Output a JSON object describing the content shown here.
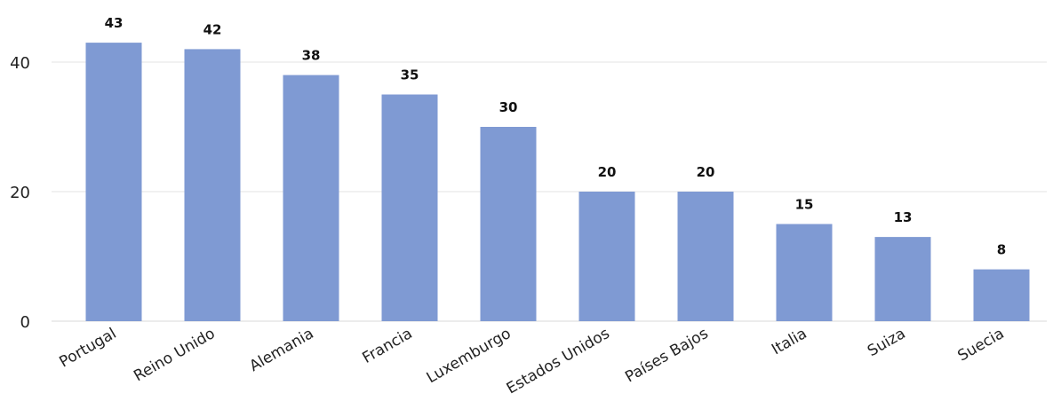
{
  "chart_data": {
    "type": "bar",
    "title": "",
    "xlabel": "",
    "ylabel": "",
    "categories": [
      "Portugal",
      "Reino Unido",
      "Alemania",
      "Francia",
      "Luxemburgo",
      "Estados Unidos",
      "Países Bajos",
      "Italia",
      "Suiza",
      "Suecia"
    ],
    "values": [
      43,
      42,
      38,
      35,
      30,
      20,
      20,
      15,
      13,
      8
    ],
    "yticks": [
      0,
      20,
      40
    ],
    "ylim": [
      0,
      48
    ],
    "grid": true,
    "legend": "none",
    "bar_color": "#7f9ad3",
    "data_labels": true,
    "x_tick_rotation": -30
  }
}
